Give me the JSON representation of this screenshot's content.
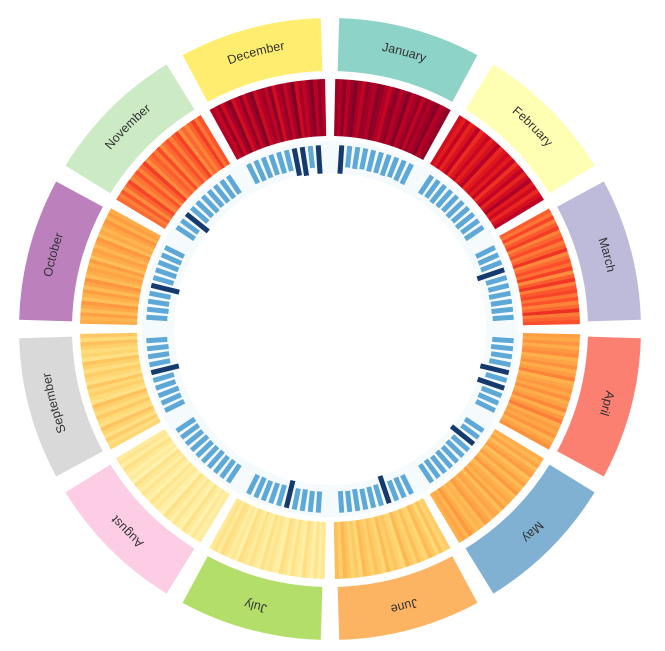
{
  "page": {
    "background": "#ffffff"
  },
  "chart_data": {
    "type": "heatmap",
    "subtype": "radial-calendar",
    "title": "",
    "legend": "none",
    "direction": "clockwise-from-top",
    "rings": [
      "month-band",
      "daily-heat-band",
      "inner-tick-bars"
    ],
    "label_color": "#333333",
    "heat_scale": {
      "name": "YlOrRd",
      "stops": [
        [
          0.0,
          "#ffffcc"
        ],
        [
          0.12,
          "#ffeda0"
        ],
        [
          0.25,
          "#fed976"
        ],
        [
          0.4,
          "#feb24c"
        ],
        [
          0.55,
          "#fd8d3c"
        ],
        [
          0.68,
          "#fc4e2a"
        ],
        [
          0.8,
          "#e31a1c"
        ],
        [
          0.9,
          "#bd0026"
        ],
        [
          1.0,
          "#800026"
        ]
      ]
    },
    "tick_style": {
      "normal_color": "#5ea8d8",
      "high_color": "#153a6e",
      "high_threshold": 85,
      "track_color": "#f5fafd"
    },
    "months": [
      {
        "name": "January",
        "band_color": "#8dd3c7",
        "heat": [
          95,
          92,
          98,
          90,
          96,
          100,
          93,
          89,
          97,
          94,
          91,
          99,
          96,
          92,
          88,
          95,
          98,
          91,
          94,
          100,
          90,
          93,
          97,
          89,
          96,
          92,
          95,
          99,
          91,
          94,
          97
        ],
        "ticks": [
          92,
          58,
          60,
          56,
          59,
          57,
          60,
          55,
          58,
          61
        ]
      },
      {
        "name": "February",
        "band_color": "#ffffb3",
        "heat": [
          85,
          80,
          88,
          78,
          83,
          90,
          76,
          82,
          87,
          79,
          84,
          91,
          77,
          81,
          86,
          80,
          88,
          75,
          83,
          89,
          78,
          85,
          92,
          80,
          86,
          77,
          84,
          90
        ],
        "ticks": [
          58,
          55,
          60,
          57,
          54,
          59,
          56,
          60,
          55,
          58
        ]
      },
      {
        "name": "March",
        "band_color": "#bebada",
        "heat": [
          65,
          60,
          70,
          58,
          66,
          72,
          57,
          63,
          69,
          59,
          64,
          74,
          56,
          62,
          68,
          61,
          71,
          55,
          65,
          73,
          58,
          66,
          70,
          60,
          67,
          57,
          63,
          75,
          59,
          64,
          68
        ],
        "ticks": [
          55,
          58,
          60,
          92,
          57,
          55,
          59,
          56,
          58,
          55
        ]
      },
      {
        "name": "April",
        "band_color": "#fb8072",
        "heat": [
          48,
          44,
          52,
          42,
          50,
          55,
          41,
          46,
          53,
          43,
          49,
          57,
          40,
          45,
          51,
          44,
          54,
          42,
          47,
          56,
          41,
          50,
          58,
          43,
          48,
          45,
          52,
          40,
          46,
          53
        ],
        "ticks": [
          57,
          60,
          55,
          58,
          96,
          59,
          90,
          56,
          58,
          55
        ]
      },
      {
        "name": "May",
        "band_color": "#80b1d3",
        "heat": [
          42,
          38,
          46,
          36,
          44,
          49,
          35,
          40,
          47,
          37,
          43,
          50,
          36,
          41,
          45,
          39,
          48,
          35,
          42,
          46,
          38,
          44,
          49,
          37,
          40,
          36,
          43,
          50,
          39,
          45,
          41
        ],
        "ticks": [
          58,
          55,
          92,
          57,
          60,
          56,
          58,
          55,
          59,
          57
        ]
      },
      {
        "name": "June",
        "band_color": "#fdb462",
        "heat": [
          30,
          27,
          34,
          25,
          32,
          37,
          26,
          29,
          35,
          27,
          31,
          38,
          25,
          28,
          33,
          29,
          36,
          26,
          30,
          34,
          28,
          32,
          37,
          25,
          31,
          27,
          33,
          38,
          29,
          35
        ],
        "ticks": [
          55,
          58,
          56,
          94,
          59,
          57,
          55,
          60,
          56,
          58
        ]
      },
      {
        "name": "July",
        "band_color": "#b3de69",
        "heat": [
          15,
          12,
          18,
          10,
          16,
          21,
          11,
          14,
          19,
          12,
          17,
          22,
          10,
          13,
          18,
          14,
          20,
          11,
          15,
          19,
          13,
          17,
          21,
          10,
          16,
          12,
          18,
          22,
          14,
          19,
          15
        ],
        "ticks": [
          56,
          55,
          59,
          57,
          90,
          58,
          56,
          55,
          58,
          56
        ]
      },
      {
        "name": "August",
        "band_color": "#fccde5",
        "heat": [
          13,
          10,
          16,
          8,
          14,
          19,
          9,
          12,
          17,
          10,
          15,
          20,
          8,
          11,
          16,
          12,
          18,
          9,
          13,
          17,
          11,
          15,
          19,
          8,
          14,
          10,
          16,
          20,
          12,
          17,
          13
        ],
        "ticks": [
          55,
          57,
          54,
          58,
          56,
          55,
          57,
          54,
          56,
          58
        ]
      },
      {
        "name": "September",
        "band_color": "#d9d9d9",
        "heat": [
          26,
          22,
          30,
          20,
          27,
          33,
          21,
          25,
          31,
          23,
          28,
          34,
          20,
          24,
          29,
          25,
          32,
          21,
          26,
          30,
          22,
          28,
          33,
          20,
          27,
          23,
          29,
          34,
          24,
          31
        ],
        "ticks": [
          56,
          55,
          58,
          54,
          57,
          92,
          55,
          56,
          58,
          55
        ]
      },
      {
        "name": "October",
        "band_color": "#bc80bd",
        "heat": [
          43,
          39,
          47,
          36,
          44,
          50,
          35,
          41,
          48,
          37,
          45,
          52,
          36,
          42,
          46,
          40,
          49,
          35,
          43,
          47,
          38,
          45,
          51,
          36,
          44,
          39,
          46,
          52,
          40,
          48,
          42
        ],
        "ticks": [
          55,
          58,
          56,
          57,
          94,
          55,
          58,
          56,
          57,
          55
        ]
      },
      {
        "name": "November",
        "band_color": "#ccebc5",
        "heat": [
          62,
          58,
          66,
          55,
          63,
          70,
          56,
          60,
          67,
          57,
          64,
          72,
          55,
          61,
          65,
          59,
          69,
          56,
          62,
          68,
          58,
          65,
          71,
          55,
          63,
          57,
          64,
          72,
          60,
          67
        ],
        "ticks": [
          57,
          55,
          90,
          58,
          56,
          59,
          55,
          57,
          58,
          56
        ]
      },
      {
        "name": "December",
        "band_color": "#ffed6f",
        "heat": [
          92,
          88,
          96,
          86,
          93,
          99,
          85,
          90,
          97,
          87,
          94,
          100,
          86,
          91,
          95,
          89,
          98,
          85,
          92,
          96,
          88,
          94,
          100,
          86,
          93,
          89,
          95,
          99,
          90,
          97,
          92
        ],
        "ticks": [
          57,
          60,
          58,
          56,
          59,
          57,
          88,
          95,
          60,
          92
        ]
      }
    ]
  }
}
